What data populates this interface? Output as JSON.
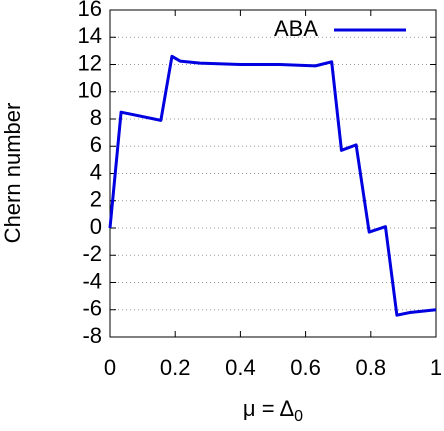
{
  "chart_data": {
    "type": "line",
    "x_label": {
      "main": "μ = Δ",
      "sub": "0"
    },
    "y_label": "Chern number",
    "x": [
      0,
      0.034,
      0.156,
      0.19,
      0.215,
      0.276,
      0.4,
      0.52,
      0.63,
      0.68,
      0.71,
      0.755,
      0.795,
      0.845,
      0.88,
      0.92,
      1
    ],
    "series": [
      {
        "name": "ABA",
        "color": "#0000e0",
        "values": [
          0,
          8.5,
          7.9,
          12.6,
          12.25,
          12.1,
          12.0,
          12.0,
          11.9,
          12.2,
          5.7,
          6.1,
          -0.3,
          0.1,
          -6.4,
          -6.2,
          -6.0
        ]
      }
    ],
    "xlim": [
      0,
      1
    ],
    "xticks": [
      0,
      0.2,
      0.4,
      0.6,
      0.8,
      1
    ],
    "ylim": [
      -8,
      16
    ],
    "yticks": [
      -8,
      -6,
      -4,
      -2,
      0,
      2,
      4,
      6,
      8,
      10,
      12,
      14,
      16
    ],
    "grid": true,
    "legend": "top-right"
  }
}
